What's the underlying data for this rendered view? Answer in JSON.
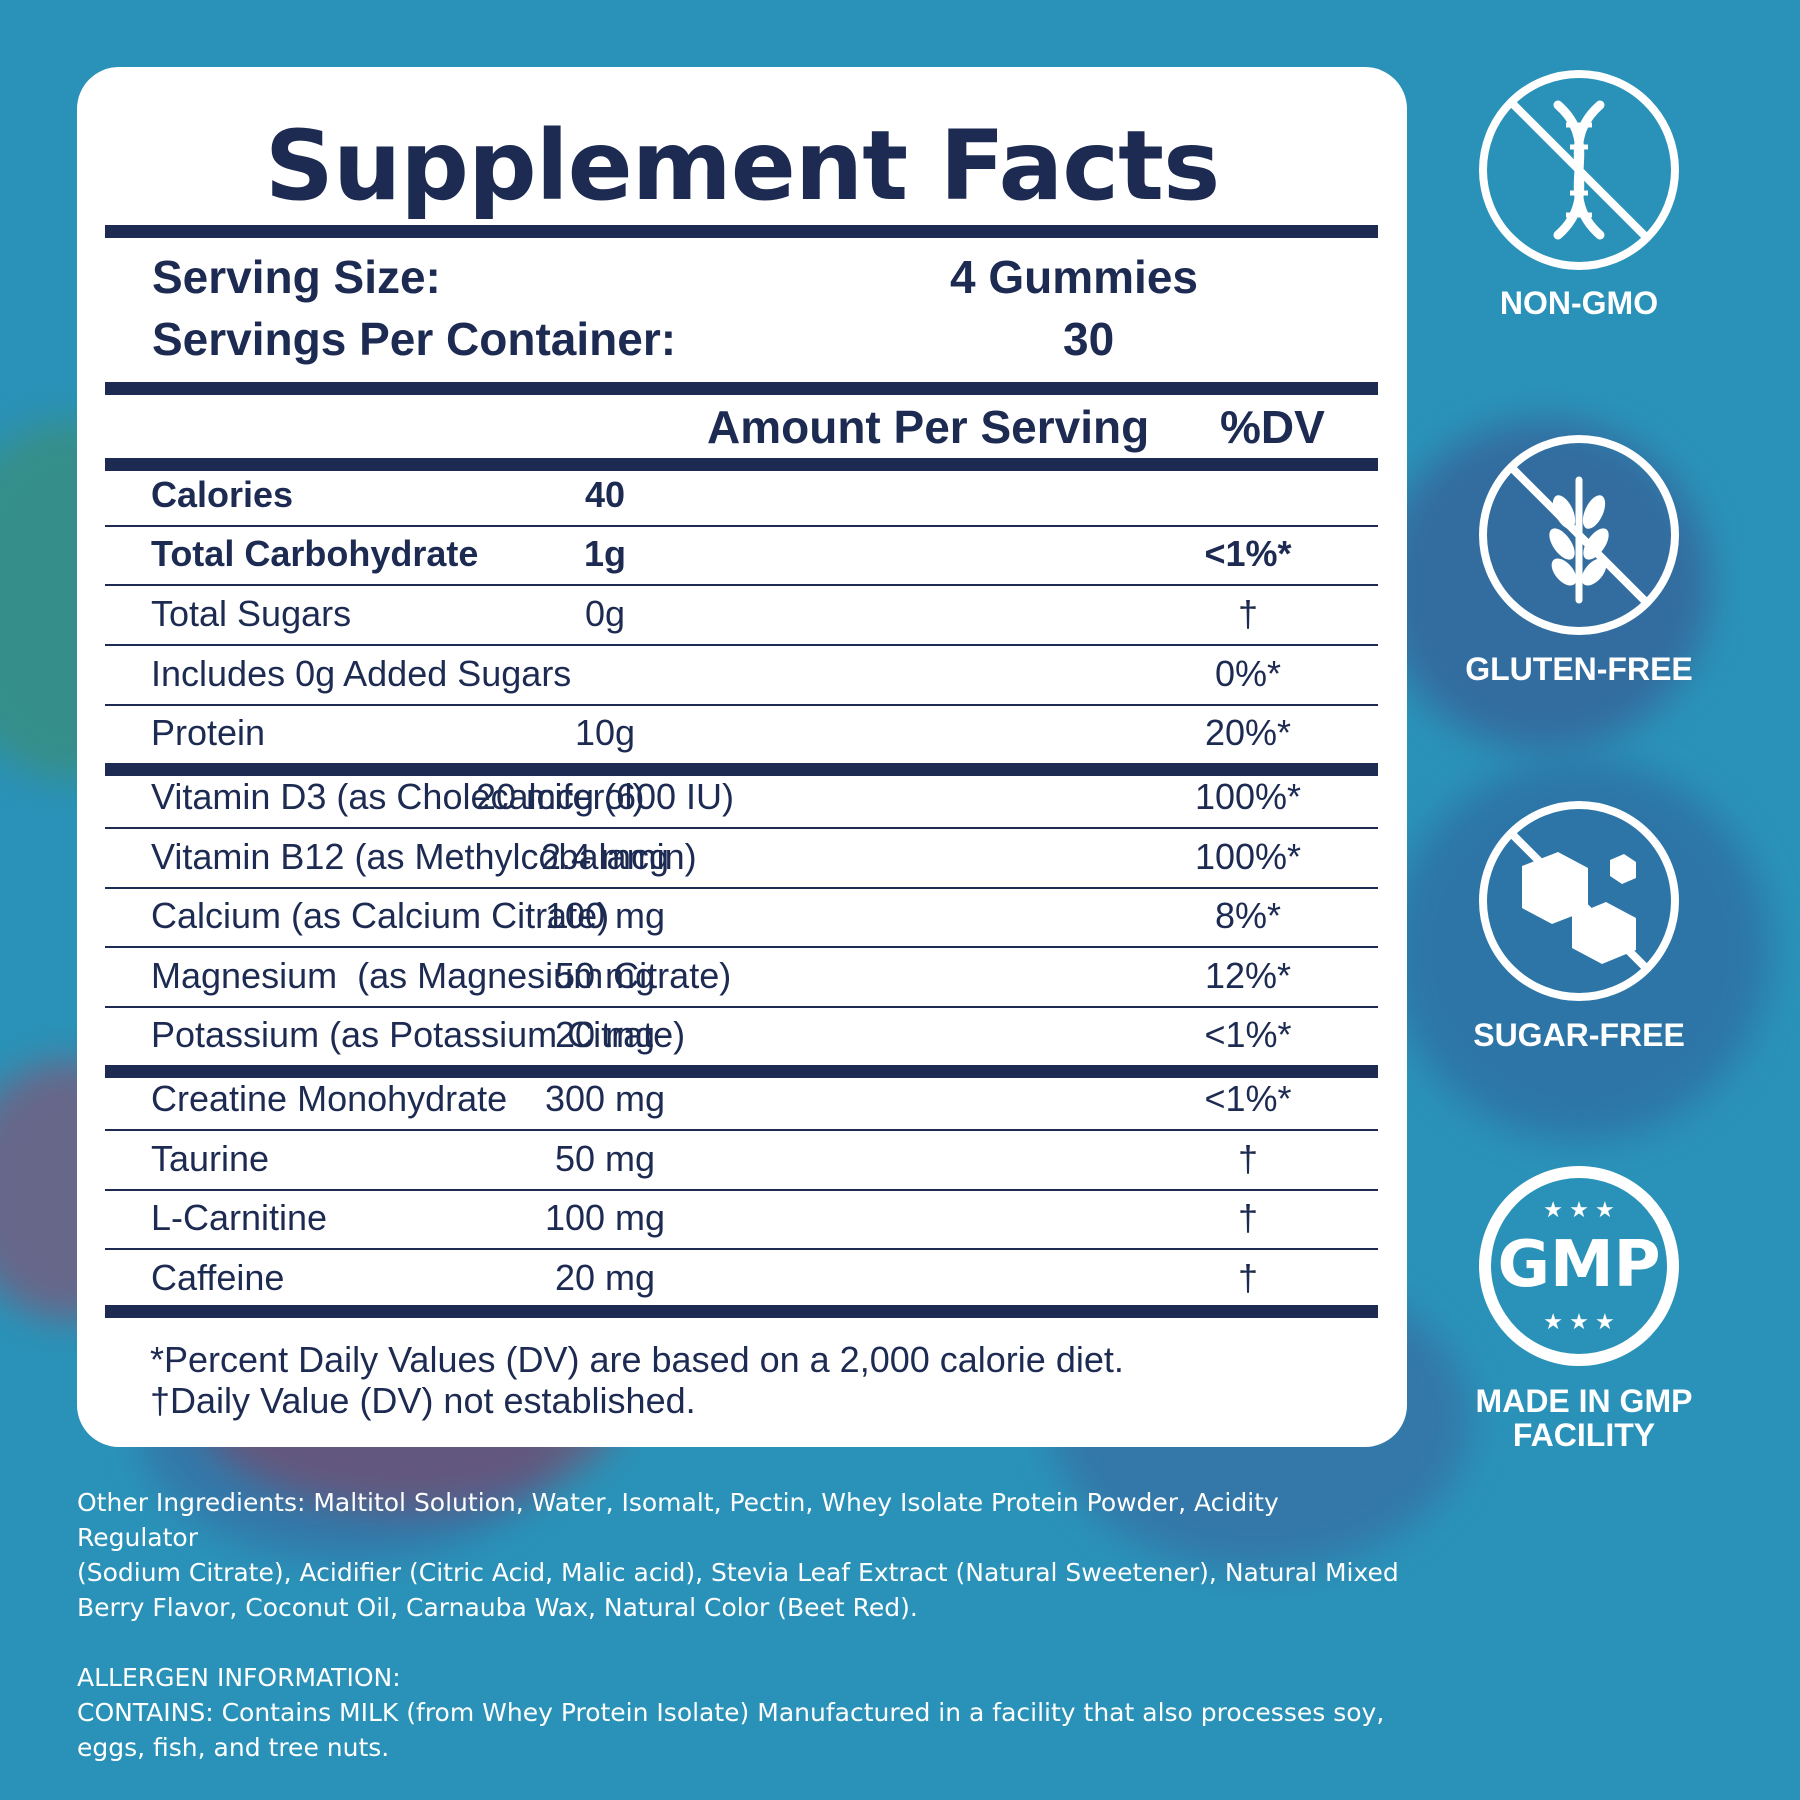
{
  "title": "Supplement Facts",
  "serving": {
    "size_label": "Serving Size:",
    "size_value": "4 Gummies",
    "per_container_label": "Servings Per Container:",
    "per_container_value": "30"
  },
  "columns": {
    "amount": "Amount Per Serving",
    "dv": "%DV"
  },
  "rows": [
    {
      "name": "Calories",
      "amount": "40",
      "dv": "",
      "bold": true
    },
    {
      "name": "Total Carbohydrate",
      "amount": "1g",
      "dv": "<1%*",
      "bold": true
    },
    {
      "name": "Total Sugars",
      "amount": "0g",
      "dv": "†"
    },
    {
      "name": "Includes 0g Added Sugars",
      "amount": "",
      "dv": "0%*"
    },
    {
      "name": "Protein",
      "amount": "10g",
      "dv": "20%*"
    },
    {
      "name": "Vitamin D3 (as Cholecalciferol)",
      "amount": "20 mcg (600 IU)",
      "dv": "100%*"
    },
    {
      "name": "Vitamin B12 (as Methylcobalamin)",
      "amount": "2.4 mcg",
      "dv": "100%*"
    },
    {
      "name": "Calcium (as Calcium Citrate)",
      "amount": "100 mg",
      "dv": "8%*"
    },
    {
      "name": "Magnesium  (as Magnesium Citrate)",
      "amount": "50 mg",
      "dv": "12%*"
    },
    {
      "name": "Potassium (as Potassium Citrate)",
      "amount": "20 mg",
      "dv": "<1%*"
    },
    {
      "name": "Creatine Monohydrate",
      "amount": "300 mg",
      "dv": "<1%*"
    },
    {
      "name": "Taurine",
      "amount": "50 mg",
      "dv": "†"
    },
    {
      "name": "L-Carnitine",
      "amount": "100 mg",
      "dv": "†"
    },
    {
      "name": "Caffeine",
      "amount": "20 mg",
      "dv": "†"
    }
  ],
  "footnotes": {
    "dv_basis": "*Percent Daily Values (DV) are based on a 2,000 calorie diet.",
    "not_established": "†Daily Value (DV) not established."
  },
  "other_ingredients": {
    "line1": "Other Ingredients: Maltitol Solution, Water, Isomalt, Pectin, Whey Isolate Protein Powder, Acidity Regulator",
    "line2": "(Sodium Citrate), Acidifier (Citric Acid, Malic acid), Stevia Leaf Extract (Natural Sweetener), Natural Mixed",
    "line3": "Berry Flavor, Coconut Oil, Carnauba Wax, Natural Color (Beet Red)."
  },
  "allergen": {
    "heading": "ALLERGEN INFORMATION:",
    "line1": "CONTAINS: Contains MILK (from Whey Protein Isolate) Manufactured in a facility that also processes soy,",
    "line2": "eggs, fish, and tree nuts."
  },
  "badges": {
    "non_gmo": {
      "label": "NON-GMO",
      "icon": "dna-crossed-icon"
    },
    "gluten_free": {
      "label": "GLUTEN-FREE",
      "icon": "wheat-crossed-icon"
    },
    "sugar_free": {
      "label": "SUGAR-FREE",
      "icon": "sugar-cubes-crossed-icon"
    },
    "gmp": {
      "label_line1": "MADE IN GMP",
      "label_line2": "FACILITY",
      "emblem": "GMP",
      "stars": "★ ★ ★",
      "icon": "gmp-seal-icon"
    }
  },
  "colors": {
    "navy": "#1d2b52",
    "background_blue": "#2a92b8",
    "panel": "#ffffff"
  }
}
